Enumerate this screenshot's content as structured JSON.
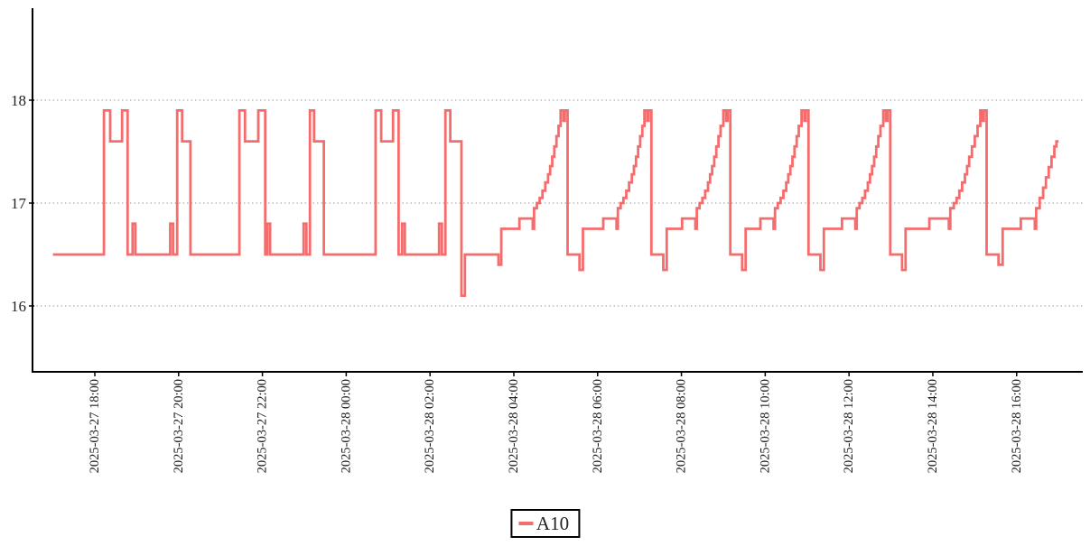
{
  "chart_data": {
    "type": "line",
    "line_style": "step-post",
    "title": "",
    "xlabel": "",
    "ylabel": "",
    "grid": "horizontal-dotted",
    "legend_position": "bottom-center",
    "colors": {
      "series": "#f56c6c",
      "axis": "#000000",
      "gridline": "#999999",
      "tick_text": "#222222",
      "background": "#ffffff"
    },
    "y_axis": {
      "ticks": [
        18,
        17,
        16
      ],
      "ylim": [
        15.35,
        18.9
      ]
    },
    "x_axis": {
      "ticks": [
        "2025-03-27 18:00",
        "2025-03-27 20:00",
        "2025-03-27 22:00",
        "2025-03-28 00:00",
        "2025-03-28 02:00",
        "2025-03-28 04:00",
        "2025-03-28 06:00",
        "2025-03-28 08:00",
        "2025-03-28 10:00",
        "2025-03-28 12:00",
        "2025-03-28 14:00",
        "2025-03-28 16:00"
      ]
    },
    "series": [
      {
        "name": "A10",
        "color": "#f56c6c",
        "points": [
          [
            "2025-03-27 17:00",
            16.5
          ],
          [
            "2025-03-27 18:13",
            17.9
          ],
          [
            "2025-03-27 18:22",
            17.6
          ],
          [
            "2025-03-27 18:39",
            17.9
          ],
          [
            "2025-03-27 18:47",
            16.5
          ],
          [
            "2025-03-27 18:54",
            16.8
          ],
          [
            "2025-03-27 18:58",
            16.5
          ],
          [
            "2025-03-27 19:48",
            16.8
          ],
          [
            "2025-03-27 19:52",
            16.5
          ],
          [
            "2025-03-27 19:58",
            17.9
          ],
          [
            "2025-03-27 20:05",
            17.6
          ],
          [
            "2025-03-27 20:17",
            16.5
          ],
          [
            "2025-03-27 21:27",
            17.9
          ],
          [
            "2025-03-27 21:35",
            17.6
          ],
          [
            "2025-03-27 21:54",
            17.9
          ],
          [
            "2025-03-27 22:04",
            16.5
          ],
          [
            "2025-03-27 22:07",
            16.8
          ],
          [
            "2025-03-27 22:11",
            16.5
          ],
          [
            "2025-03-27 22:59",
            16.8
          ],
          [
            "2025-03-27 23:03",
            16.5
          ],
          [
            "2025-03-27 23:08",
            17.9
          ],
          [
            "2025-03-27 23:14",
            17.6
          ],
          [
            "2025-03-27 23:28",
            16.5
          ],
          [
            "2025-03-28 00:42",
            17.9
          ],
          [
            "2025-03-28 00:50",
            17.6
          ],
          [
            "2025-03-28 01:07",
            17.9
          ],
          [
            "2025-03-28 01:15",
            16.5
          ],
          [
            "2025-03-28 01:20",
            16.8
          ],
          [
            "2025-03-28 01:24",
            16.5
          ],
          [
            "2025-03-28 02:13",
            16.8
          ],
          [
            "2025-03-28 02:17",
            16.5
          ],
          [
            "2025-03-28 02:22",
            17.9
          ],
          [
            "2025-03-28 02:29",
            17.6
          ],
          [
            "2025-03-28 02:45",
            16.1
          ],
          [
            "2025-03-28 02:50",
            16.5
          ],
          [
            "2025-03-28 03:38",
            16.4
          ],
          [
            "2025-03-28 03:42",
            16.75
          ],
          [
            "2025-03-28 04:08",
            16.85
          ],
          [
            "2025-03-28 04:27",
            16.75
          ],
          [
            "2025-03-28 04:29",
            16.95
          ],
          [
            "2025-03-28 04:33",
            17.0
          ],
          [
            "2025-03-28 04:37",
            17.05
          ],
          [
            "2025-03-28 04:41",
            17.12
          ],
          [
            "2025-03-28 04:45",
            17.2
          ],
          [
            "2025-03-28 04:49",
            17.28
          ],
          [
            "2025-03-28 04:52",
            17.36
          ],
          [
            "2025-03-28 04:55",
            17.45
          ],
          [
            "2025-03-28 04:58",
            17.55
          ],
          [
            "2025-03-28 05:01",
            17.65
          ],
          [
            "2025-03-28 05:04",
            17.75
          ],
          [
            "2025-03-28 05:07",
            17.9
          ],
          [
            "2025-03-28 05:11",
            17.8
          ],
          [
            "2025-03-28 05:13",
            17.9
          ],
          [
            "2025-03-28 05:17",
            16.5
          ],
          [
            "2025-03-28 05:34",
            16.35
          ],
          [
            "2025-03-28 05:39",
            16.75
          ],
          [
            "2025-03-28 06:08",
            16.85
          ],
          [
            "2025-03-28 06:27",
            16.75
          ],
          [
            "2025-03-28 06:29",
            16.95
          ],
          [
            "2025-03-28 06:33",
            17.0
          ],
          [
            "2025-03-28 06:37",
            17.05
          ],
          [
            "2025-03-28 06:41",
            17.12
          ],
          [
            "2025-03-28 06:45",
            17.2
          ],
          [
            "2025-03-28 06:49",
            17.28
          ],
          [
            "2025-03-28 06:52",
            17.36
          ],
          [
            "2025-03-28 06:55",
            17.45
          ],
          [
            "2025-03-28 06:58",
            17.55
          ],
          [
            "2025-03-28 07:01",
            17.65
          ],
          [
            "2025-03-28 07:04",
            17.75
          ],
          [
            "2025-03-28 07:07",
            17.9
          ],
          [
            "2025-03-28 07:11",
            17.8
          ],
          [
            "2025-03-28 07:13",
            17.9
          ],
          [
            "2025-03-28 07:17",
            16.5
          ],
          [
            "2025-03-28 07:34",
            16.35
          ],
          [
            "2025-03-28 07:39",
            16.75
          ],
          [
            "2025-03-28 08:01",
            16.85
          ],
          [
            "2025-03-28 08:20",
            16.75
          ],
          [
            "2025-03-28 08:22",
            16.95
          ],
          [
            "2025-03-28 08:26",
            17.0
          ],
          [
            "2025-03-28 08:30",
            17.05
          ],
          [
            "2025-03-28 08:34",
            17.12
          ],
          [
            "2025-03-28 08:38",
            17.2
          ],
          [
            "2025-03-28 08:41",
            17.28
          ],
          [
            "2025-03-28 08:44",
            17.36
          ],
          [
            "2025-03-28 08:47",
            17.45
          ],
          [
            "2025-03-28 08:50",
            17.55
          ],
          [
            "2025-03-28 08:53",
            17.65
          ],
          [
            "2025-03-28 08:56",
            17.75
          ],
          [
            "2025-03-28 09:00",
            17.9
          ],
          [
            "2025-03-28 09:04",
            17.8
          ],
          [
            "2025-03-28 09:06",
            17.9
          ],
          [
            "2025-03-28 09:10",
            16.5
          ],
          [
            "2025-03-28 09:27",
            16.35
          ],
          [
            "2025-03-28 09:32",
            16.75
          ],
          [
            "2025-03-28 09:53",
            16.85
          ],
          [
            "2025-03-28 10:12",
            16.75
          ],
          [
            "2025-03-28 10:14",
            16.95
          ],
          [
            "2025-03-28 10:18",
            17.0
          ],
          [
            "2025-03-28 10:22",
            17.05
          ],
          [
            "2025-03-28 10:26",
            17.12
          ],
          [
            "2025-03-28 10:30",
            17.2
          ],
          [
            "2025-03-28 10:33",
            17.28
          ],
          [
            "2025-03-28 10:36",
            17.36
          ],
          [
            "2025-03-28 10:39",
            17.45
          ],
          [
            "2025-03-28 10:42",
            17.55
          ],
          [
            "2025-03-28 10:45",
            17.65
          ],
          [
            "2025-03-28 10:48",
            17.75
          ],
          [
            "2025-03-28 10:52",
            17.9
          ],
          [
            "2025-03-28 10:56",
            17.8
          ],
          [
            "2025-03-28 10:58",
            17.9
          ],
          [
            "2025-03-28 11:02",
            16.5
          ],
          [
            "2025-03-28 11:19",
            16.35
          ],
          [
            "2025-03-28 11:24",
            16.75
          ],
          [
            "2025-03-28 11:50",
            16.85
          ],
          [
            "2025-03-28 12:09",
            16.75
          ],
          [
            "2025-03-28 12:11",
            16.95
          ],
          [
            "2025-03-28 12:15",
            17.0
          ],
          [
            "2025-03-28 12:19",
            17.05
          ],
          [
            "2025-03-28 12:23",
            17.12
          ],
          [
            "2025-03-28 12:27",
            17.2
          ],
          [
            "2025-03-28 12:30",
            17.28
          ],
          [
            "2025-03-28 12:33",
            17.36
          ],
          [
            "2025-03-28 12:36",
            17.45
          ],
          [
            "2025-03-28 12:39",
            17.55
          ],
          [
            "2025-03-28 12:42",
            17.65
          ],
          [
            "2025-03-28 12:45",
            17.75
          ],
          [
            "2025-03-28 12:49",
            17.9
          ],
          [
            "2025-03-28 12:53",
            17.8
          ],
          [
            "2025-03-28 12:55",
            17.9
          ],
          [
            "2025-03-28 12:59",
            16.5
          ],
          [
            "2025-03-28 13:16",
            16.35
          ],
          [
            "2025-03-28 13:21",
            16.75
          ],
          [
            "2025-03-28 13:55",
            16.85
          ],
          [
            "2025-03-28 14:23",
            16.75
          ],
          [
            "2025-03-28 14:25",
            16.95
          ],
          [
            "2025-03-28 14:30",
            17.0
          ],
          [
            "2025-03-28 14:34",
            17.05
          ],
          [
            "2025-03-28 14:38",
            17.12
          ],
          [
            "2025-03-28 14:42",
            17.2
          ],
          [
            "2025-03-28 14:46",
            17.28
          ],
          [
            "2025-03-28 14:49",
            17.36
          ],
          [
            "2025-03-28 14:52",
            17.45
          ],
          [
            "2025-03-28 14:56",
            17.55
          ],
          [
            "2025-03-28 15:00",
            17.65
          ],
          [
            "2025-03-28 15:04",
            17.75
          ],
          [
            "2025-03-28 15:08",
            17.9
          ],
          [
            "2025-03-28 15:11",
            17.8
          ],
          [
            "2025-03-28 15:13",
            17.9
          ],
          [
            "2025-03-28 15:17",
            16.5
          ],
          [
            "2025-03-28 15:34",
            16.4
          ],
          [
            "2025-03-28 15:40",
            16.75
          ],
          [
            "2025-03-28 16:06",
            16.85
          ],
          [
            "2025-03-28 16:26",
            16.75
          ],
          [
            "2025-03-28 16:28",
            16.95
          ],
          [
            "2025-03-28 16:33",
            17.05
          ],
          [
            "2025-03-28 16:38",
            17.15
          ],
          [
            "2025-03-28 16:42",
            17.25
          ],
          [
            "2025-03-28 16:46",
            17.35
          ],
          [
            "2025-03-28 16:50",
            17.45
          ],
          [
            "2025-03-28 16:54",
            17.55
          ],
          [
            "2025-03-28 16:57",
            17.6
          ]
        ]
      }
    ]
  },
  "legend": {
    "label": "A10",
    "marker_color": "#f56c6c"
  }
}
